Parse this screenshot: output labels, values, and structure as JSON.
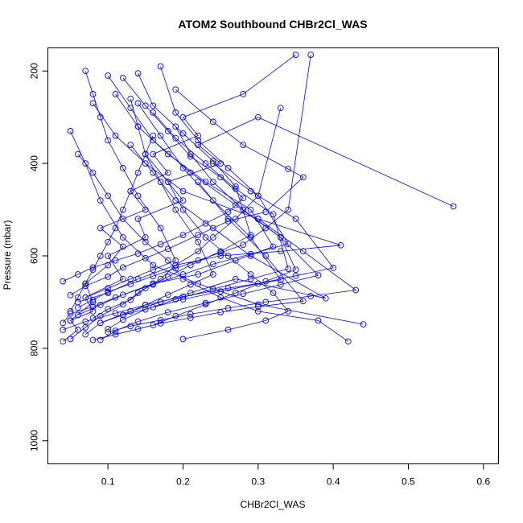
{
  "chart_data": {
    "type": "line",
    "title": "ATOM2 Southbound CHBr2Cl_WAS",
    "xlabel": "CHBr2Cl_WAS",
    "ylabel": "Pressure (mbar)",
    "xlim": [
      0.02,
      0.62
    ],
    "ylim": [
      1050,
      150
    ],
    "y_axis_inverted": true,
    "grid": false,
    "legend": "none",
    "x_ticks": [
      0.1,
      0.2,
      0.3,
      0.4,
      0.5,
      0.6
    ],
    "x_tick_labels": [
      "0.1",
      "0.2",
      "0.3",
      "0.4",
      "0.5",
      "0.6"
    ],
    "y_ticks": [
      200,
      400,
      600,
      800,
      1000
    ],
    "y_tick_labels": [
      "200",
      "400",
      "600",
      "800",
      "1000"
    ],
    "color": "#0000ff",
    "marker": "open-circle",
    "series": [
      {
        "x": [
          0.04,
          0.06,
          0.05,
          0.08,
          0.07,
          0.1,
          0.12,
          0.09,
          0.15,
          0.13,
          0.18,
          0.16,
          0.22,
          0.2,
          0.28,
          0.35
        ],
        "y": [
          785,
          760,
          740,
          700,
          660,
          620,
          580,
          540,
          500,
          460,
          420,
          380,
          340,
          300,
          250,
          165
        ]
      },
      {
        "x": [
          0.05,
          0.08,
          0.07,
          0.12,
          0.1,
          0.15,
          0.14,
          0.2,
          0.18,
          0.25,
          0.22,
          0.3,
          0.56
        ],
        "y": [
          740,
          720,
          690,
          650,
          600,
          560,
          520,
          480,
          440,
          400,
          360,
          300,
          493
        ]
      },
      {
        "x": [
          0.42,
          0.38,
          0.3,
          0.25,
          0.2,
          0.18,
          0.15,
          0.12,
          0.1,
          0.08,
          0.06
        ],
        "y": [
          785,
          740,
          720,
          690,
          650,
          610,
          570,
          520,
          470,
          420,
          380
        ]
      },
      {
        "x": [
          0.44,
          0.3,
          0.22,
          0.16,
          0.12,
          0.09,
          0.07,
          0.05
        ],
        "y": [
          748,
          705,
          660,
          620,
          560,
          480,
          400,
          330
        ]
      },
      {
        "x": [
          0.06,
          0.1,
          0.14,
          0.19,
          0.25,
          0.33,
          0.41,
          0.3,
          0.2,
          0.15,
          0.11,
          0.08
        ],
        "y": [
          700,
          680,
          650,
          620,
          600,
          590,
          577,
          520,
          460,
          400,
          340,
          270
        ]
      },
      {
        "x": [
          0.07,
          0.09,
          0.13,
          0.17,
          0.21,
          0.27,
          0.39,
          0.29,
          0.24,
          0.19,
          0.16,
          0.13
        ],
        "y": [
          770,
          745,
          720,
          700,
          680,
          650,
          692,
          600,
          540,
          480,
          420,
          360
        ]
      },
      {
        "x": [
          0.04,
          0.05,
          0.08,
          0.11,
          0.16,
          0.22,
          0.27,
          0.32,
          0.29,
          0.23,
          0.18,
          0.14,
          0.11
        ],
        "y": [
          745,
          725,
          710,
          690,
          660,
          640,
          610,
          580,
          500,
          440,
          380,
          320,
          250
        ]
      },
      {
        "x": [
          0.05,
          0.07,
          0.1,
          0.12,
          0.15,
          0.18,
          0.22,
          0.26,
          0.31,
          0.36,
          0.34,
          0.28,
          0.24,
          0.19
        ],
        "y": [
          685,
          665,
          645,
          625,
          605,
          585,
          555,
          525,
          505,
          430,
          412,
          360,
          310,
          240
        ]
      },
      {
        "x": [
          0.09,
          0.11,
          0.14,
          0.18,
          0.23,
          0.28,
          0.33,
          0.38,
          0.33,
          0.27,
          0.21,
          0.16,
          0.13,
          0.1
        ],
        "y": [
          782,
          762,
          742,
          722,
          702,
          682,
          662,
          642,
          560,
          490,
          420,
          350,
          280,
          210
        ]
      },
      {
        "x": [
          0.06,
          0.09,
          0.12,
          0.16,
          0.2,
          0.24,
          0.29,
          0.34,
          0.3,
          0.26,
          0.22,
          0.19,
          0.17
        ],
        "y": [
          728,
          706,
          684,
          662,
          640,
          618,
          596,
          574,
          470,
          410,
          350,
          290,
          190
        ]
      },
      {
        "x": [
          0.08,
          0.1,
          0.13,
          0.15,
          0.18,
          0.21,
          0.25,
          0.29,
          0.27,
          0.24,
          0.2,
          0.16,
          0.14
        ],
        "y": [
          735,
          715,
          695,
          670,
          645,
          620,
          590,
          555,
          450,
          395,
          335,
          275,
          205
        ]
      },
      {
        "x": [
          0.04,
          0.06,
          0.08,
          0.11,
          0.14,
          0.17,
          0.2,
          0.23,
          0.26,
          0.28,
          0.25,
          0.21,
          0.18,
          0.15,
          0.12
        ],
        "y": [
          655,
          640,
          625,
          610,
          595,
          575,
          555,
          530,
          505,
          475,
          430,
          385,
          330,
          275,
          215
        ]
      },
      {
        "x": [
          0.1,
          0.12,
          0.15,
          0.19,
          0.24,
          0.29,
          0.34,
          0.32,
          0.27,
          0.23,
          0.19,
          0.16
        ],
        "y": [
          758,
          738,
          716,
          694,
          672,
          650,
          628,
          510,
          455,
          400,
          345,
          290
        ]
      },
      {
        "x": [
          0.05,
          0.07,
          0.09,
          0.12,
          0.14,
          0.17,
          0.19,
          0.22,
          0.24,
          0.27,
          0.3,
          0.33
        ],
        "y": [
          780,
          755,
          730,
          705,
          680,
          650,
          620,
          590,
          560,
          520,
          470,
          280
        ]
      },
      {
        "x": [
          0.2,
          0.26,
          0.31,
          0.34,
          0.32,
          0.29,
          0.26,
          0.23,
          0.2,
          0.18,
          0.15
        ],
        "y": [
          780,
          760,
          740,
          720,
          680,
          640,
          600,
          560,
          500,
          440,
          380
        ]
      },
      {
        "x": [
          0.07,
          0.1,
          0.13,
          0.16,
          0.19,
          0.17,
          0.14,
          0.12,
          0.1,
          0.09,
          0.08,
          0.07
        ],
        "y": [
          690,
          670,
          650,
          630,
          610,
          540,
          470,
          410,
          350,
          300,
          250,
          200
        ]
      },
      {
        "x": [
          0.12,
          0.15,
          0.18,
          0.21,
          0.24,
          0.22,
          0.19,
          0.17,
          0.15,
          0.14,
          0.13
        ],
        "y": [
          728,
          706,
          684,
          662,
          640,
          570,
          500,
          440,
          380,
          320,
          260
        ]
      },
      {
        "x": [
          0.16,
          0.19,
          0.23,
          0.27,
          0.31,
          0.35,
          0.33,
          0.28,
          0.24,
          0.21,
          0.19
        ],
        "y": [
          750,
          730,
          705,
          680,
          655,
          630,
          560,
          500,
          440,
          380,
          320
        ]
      },
      {
        "x": [
          0.06,
          0.08,
          0.1,
          0.13,
          0.16,
          0.19,
          0.22,
          0.25,
          0.28,
          0.31,
          0.34,
          0.37
        ],
        "y": [
          712,
          695,
          678,
          661,
          644,
          627,
          610,
          593,
          576,
          540,
          500,
          165
        ]
      },
      {
        "x": [
          0.09,
          0.12,
          0.16,
          0.2,
          0.25,
          0.3,
          0.35,
          0.4,
          0.35,
          0.29,
          0.24
        ],
        "y": [
          745,
          728,
          711,
          694,
          677,
          660,
          643,
          626,
          520,
          460,
          400
        ]
      },
      {
        "x": [
          0.04,
          0.07,
          0.11,
          0.15,
          0.2,
          0.26,
          0.33,
          0.29,
          0.24,
          0.2,
          0.17,
          0.14
        ],
        "y": [
          760,
          742,
          724,
          706,
          688,
          670,
          652,
          560,
          480,
          410,
          340,
          270
        ]
      },
      {
        "x": [
          0.08,
          0.11,
          0.14,
          0.17,
          0.21,
          0.25,
          0.3,
          0.36,
          0.31,
          0.26,
          0.22
        ],
        "y": [
          782,
          770,
          758,
          746,
          734,
          722,
          710,
          698,
          600,
          520,
          440
        ]
      },
      {
        "x": [
          0.05,
          0.06,
          0.07,
          0.08,
          0.09,
          0.1,
          0.11,
          0.12,
          0.13,
          0.14,
          0.15,
          0.16
        ],
        "y": [
          720,
          690,
          660,
          630,
          600,
          570,
          540,
          500,
          460,
          420,
          380,
          340
        ]
      },
      {
        "x": [
          0.1,
          0.13,
          0.17,
          0.21,
          0.26,
          0.31,
          0.37,
          0.43,
          0.36,
          0.3
        ],
        "y": [
          765,
          752,
          739,
          726,
          713,
          700,
          687,
          674,
          590,
          520
        ]
      }
    ]
  }
}
